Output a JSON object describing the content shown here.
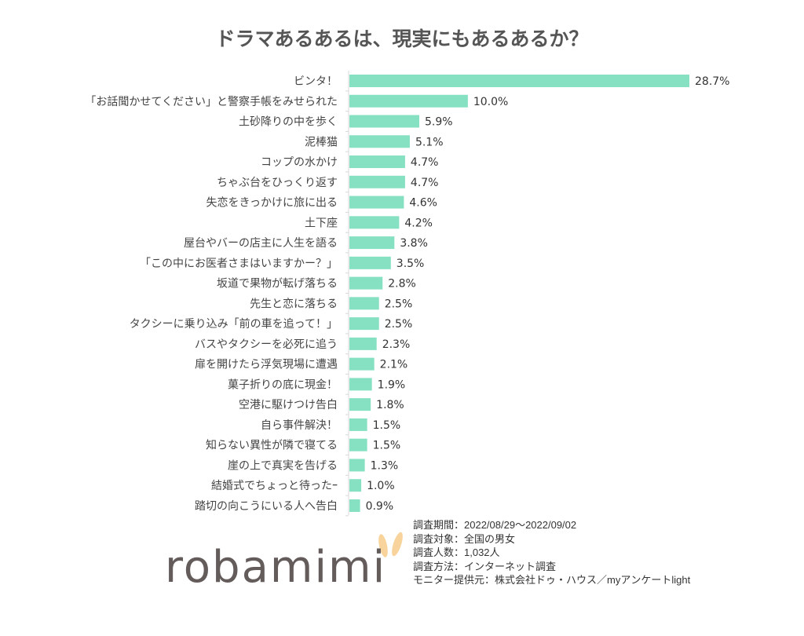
{
  "chart_data": {
    "type": "bar",
    "orientation": "horizontal",
    "title": "ドラマあるあるは、現実にもあるあるか？",
    "categories": [
      "ビンタ！",
      "「お話聞かせてください」と警察手帳をみせられた",
      "土砂降りの中を歩く",
      "泥棒猫",
      "コップの水かけ",
      "ちゃぶ台をひっくり返す",
      "失恋をきっかけに旅に出る",
      "土下座",
      "屋台やバーの店主に人生を語る",
      "「この中にお医者さまはいますかー？」",
      "坂道で果物が転げ落ちる",
      "先生と恋に落ちる",
      "タクシーに乗り込み「前の車を追って！」",
      "バスやタクシーを必死に追う",
      "扉を開けたら浮気現場に遭遇",
      "菓子折りの底に現金！",
      "空港に駆けつけ告白",
      "自ら事件解決！",
      "知らない異性が隣で寝てる",
      "崖の上で真実を告げる",
      "結婚式でちょっと待ったｰ",
      "踏切の向こうにいる人へ告白"
    ],
    "values": [
      28.7,
      10.0,
      5.9,
      5.1,
      4.7,
      4.7,
      4.6,
      4.2,
      3.8,
      3.5,
      2.8,
      2.5,
      2.5,
      2.3,
      2.1,
      1.9,
      1.8,
      1.5,
      1.5,
      1.3,
      1.0,
      0.9
    ],
    "value_labels": [
      "28.7%",
      "10.0%",
      "5.9%",
      "5.1%",
      "4.7%",
      "4.7%",
      "4.6%",
      "4.2%",
      "3.8%",
      "3.5%",
      "2.8%",
      "2.5%",
      "2.5%",
      "2.3%",
      "2.1%",
      "1.9%",
      "1.8%",
      "1.5%",
      "1.5%",
      "1.3%",
      "1.0%",
      "0.9%"
    ],
    "unit": "%",
    "xlim": [
      0,
      28.7
    ],
    "bar_color": "#86e0c2"
  },
  "logo": "robamimi",
  "notes": [
    "調査期間：2022/08/29～2022/09/02",
    "調査対象：全国の男女",
    "調査人数：1,032人",
    "調査方法：インターネット調査",
    "モニター提供元：株式会社ドゥ・ハウス／myアンケートlight"
  ]
}
